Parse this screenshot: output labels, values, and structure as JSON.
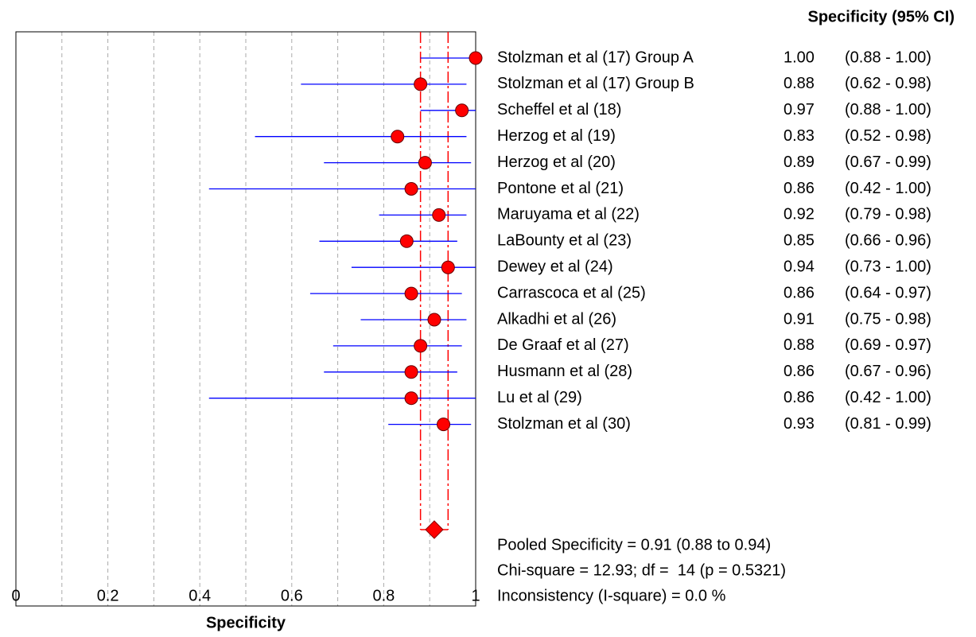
{
  "chart_data": {
    "type": "forest",
    "column_header": "Specificity (95% CI)",
    "x_label": "Specificity",
    "xlim": [
      0,
      1
    ],
    "xticks": [
      0,
      0.2,
      0.4,
      0.6,
      0.8,
      1
    ],
    "grid_ticks": [
      0.1,
      0.2,
      0.3,
      0.4,
      0.5,
      0.6,
      0.7,
      0.8,
      0.9
    ],
    "grid": true,
    "point_color": "#ff0000",
    "ci_color": "#0000ff",
    "pooled_color": "#ff0000",
    "categories": [
      "Stolzman et al (17) Group A",
      "Stolzman et al (17) Group B",
      "Scheffel et al (18)",
      "Herzog et al (19)",
      "Herzog et al (20)",
      "Pontone et al (21)",
      "Maruyama et al (22)",
      "LaBounty et al (23)",
      "Dewey et al (24)",
      "Carrascoca et al (25)",
      "Alkadhi et al (26)",
      "De Graaf et al (27)",
      "Husmann et al (28)",
      "Lu et al (29)",
      "Stolzman et al (30)"
    ],
    "values": [
      1,
      0.88,
      0.97,
      0.83,
      0.89,
      0.86,
      0.92,
      0.85,
      0.94,
      0.86,
      0.91,
      0.88,
      0.86,
      0.86,
      0.93
    ],
    "value_labels": [
      "1.00",
      "0.88",
      "0.97",
      "0.83",
      "0.89",
      "0.86",
      "0.92",
      "0.85",
      "0.94",
      "0.86",
      "0.91",
      "0.88",
      "0.86",
      "0.86",
      "0.93"
    ],
    "lower": [
      0.88,
      0.62,
      0.88,
      0.52,
      0.67,
      0.42,
      0.79,
      0.66,
      0.73,
      0.64,
      0.75,
      0.69,
      0.67,
      0.42,
      0.81
    ],
    "upper": [
      1,
      0.98,
      1,
      0.98,
      0.99,
      1,
      0.98,
      0.96,
      1,
      0.97,
      0.98,
      0.97,
      0.96,
      1,
      0.99
    ],
    "ci_labels": [
      "(0.88 - 1.00)",
      "(0.62 - 0.98)",
      "(0.88 - 1.00)",
      "(0.52 - 0.98)",
      "(0.67 - 0.99)",
      "(0.42 - 1.00)",
      "(0.79 - 0.98)",
      "(0.66 - 0.96)",
      "(0.73 - 1.00)",
      "(0.64 - 0.97)",
      "(0.75 - 0.98)",
      "(0.69 - 0.97)",
      "(0.67 - 0.96)",
      "(0.42 - 1.00)",
      "(0.81 - 0.99)"
    ],
    "pooled": {
      "value": 0.91,
      "lower": 0.88,
      "upper": 0.94,
      "label": "Pooled Specificity = 0.91 (0.88 to 0.94)"
    },
    "annotations": [
      "Chi-square = 12.93; df =  14 (p = 0.5321)",
      "Inconsistency (I-square) = 0.0 %"
    ]
  }
}
